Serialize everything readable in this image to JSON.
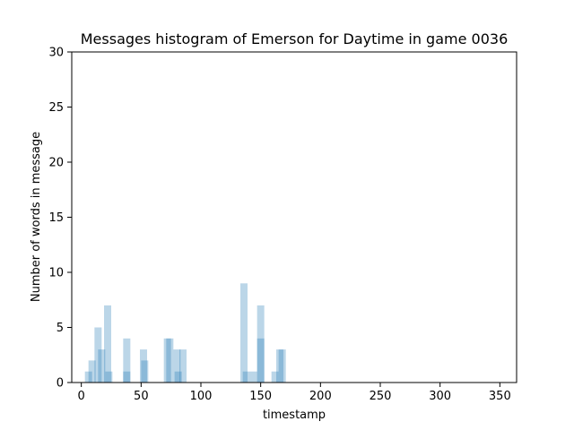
{
  "chart_data": {
    "type": "bar",
    "title": "Messages histogram of Emerson for Daytime in game 0036",
    "xlabel": "timestamp",
    "ylabel": "Number of words in message",
    "xlim": [
      -8,
      364
    ],
    "ylim": [
      0,
      30
    ],
    "xticks": [
      0,
      50,
      100,
      150,
      200,
      250,
      300,
      350
    ],
    "yticks": [
      0,
      5,
      10,
      15,
      20,
      25,
      30
    ],
    "bar_width": 6,
    "bar_color": "#1f77b4",
    "bar_opacity": 0.3,
    "grid": false,
    "bars": [
      {
        "x": 6,
        "value": 1
      },
      {
        "x": 9,
        "value": 2
      },
      {
        "x": 14,
        "value": 5
      },
      {
        "x": 17,
        "value": 3
      },
      {
        "x": 22,
        "value": 7
      },
      {
        "x": 23,
        "value": 1
      },
      {
        "x": 38,
        "value": 4
      },
      {
        "x": 38,
        "value": 1
      },
      {
        "x": 52,
        "value": 3
      },
      {
        "x": 53,
        "value": 2
      },
      {
        "x": 72,
        "value": 4
      },
      {
        "x": 74,
        "value": 4
      },
      {
        "x": 80,
        "value": 3
      },
      {
        "x": 81,
        "value": 1
      },
      {
        "x": 85,
        "value": 3
      },
      {
        "x": 136,
        "value": 9
      },
      {
        "x": 138,
        "value": 1
      },
      {
        "x": 144,
        "value": 1
      },
      {
        "x": 150,
        "value": 7
      },
      {
        "x": 150,
        "value": 4
      },
      {
        "x": 162,
        "value": 1
      },
      {
        "x": 166,
        "value": 3
      },
      {
        "x": 168,
        "value": 3
      }
    ]
  }
}
